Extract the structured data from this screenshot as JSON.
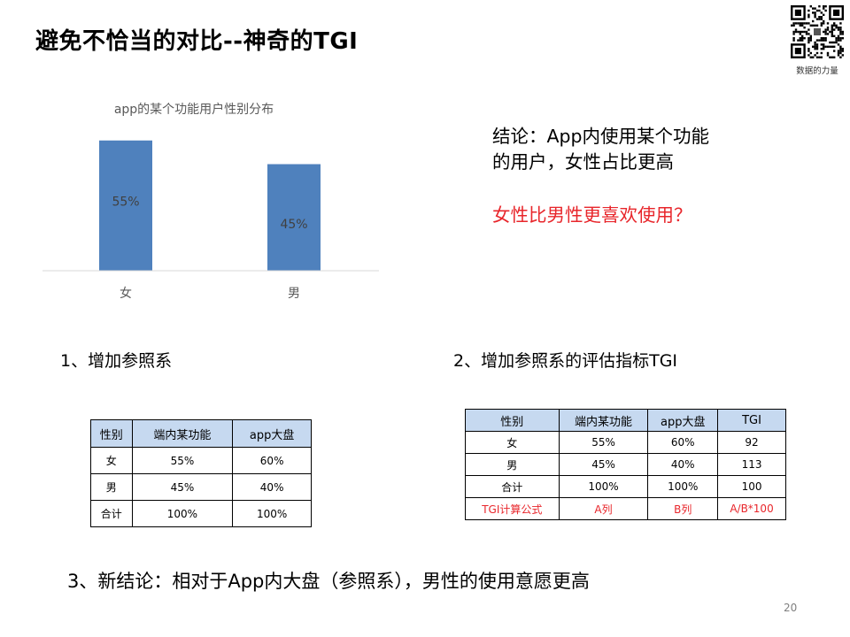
{
  "slide": {
    "title": "避免不恰当的对比--神奇的TGI",
    "qr_caption": "数据的力量",
    "page_number": "20"
  },
  "chart_data": {
    "type": "bar",
    "title": "app的某个功能用户性别分布",
    "categories": [
      "女",
      "男"
    ],
    "values": [
      55,
      45
    ],
    "data_labels": [
      "55%",
      "45%"
    ],
    "ylim": [
      0,
      65
    ],
    "grid": false,
    "legend": "none",
    "bar_color": "#4f81bd"
  },
  "conclusion": {
    "line1": "结论：App内使用某个功能",
    "line2": "的用户，女性占比更高",
    "question": "女性比男性更喜欢使用？"
  },
  "section1": {
    "title": "1、增加参照系",
    "headers": [
      "性别",
      "端内某功能",
      "app大盘"
    ],
    "rows": [
      [
        "女",
        "55%",
        "60%"
      ],
      [
        "男",
        "45%",
        "40%"
      ],
      [
        "合计",
        "100%",
        "100%"
      ]
    ]
  },
  "section2": {
    "title": "2、增加参照系的评估指标TGI",
    "headers": [
      "性别",
      "端内某功能",
      "app大盘",
      "TGI"
    ],
    "rows": [
      [
        "女",
        "55%",
        "60%",
        "92"
      ],
      [
        "男",
        "45%",
        "40%",
        "113"
      ],
      [
        "合计",
        "100%",
        "100%",
        "100"
      ],
      [
        "TGI计算公式",
        "A列",
        "B列",
        "A/B*100"
      ]
    ]
  },
  "new_conclusion": "3、新结论：相对于App内大盘（参照系），男性的使用意愿更高",
  "colors": {
    "accent_red": "#e8262b",
    "header_fill": "#c6d9f0",
    "bar": "#4f81bd"
  }
}
